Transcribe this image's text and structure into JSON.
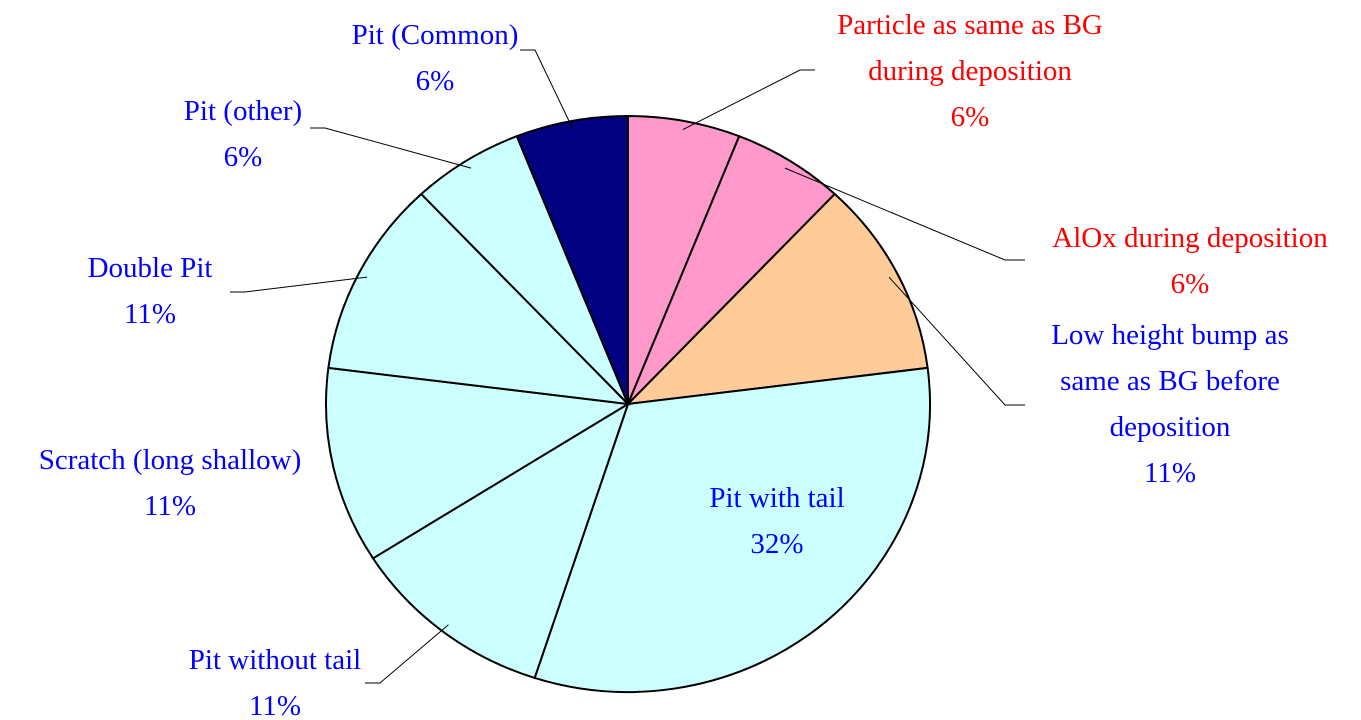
{
  "chart_data": {
    "type": "pie",
    "categories": [
      "Particle as same as BG during deposition",
      "AlOx during deposition",
      "Low height bump as same as BG before deposition",
      "Pit with tail",
      "Pit without tail",
      "Scratch (long shallow)",
      "Double Pit",
      "Pit (other)",
      "Pit (Common)"
    ],
    "values": [
      6,
      6,
      11,
      32,
      11,
      11,
      11,
      6,
      6
    ],
    "value_labels": [
      "6%",
      "6%",
      "11%",
      "32%",
      "11%",
      "11%",
      "11%",
      "6%",
      "6%"
    ],
    "colors": [
      "#ff99cc",
      "#ff99cc",
      "#ffcc99",
      "#ccffff",
      "#ccffff",
      "#ccffff",
      "#ccffff",
      "#ccffff",
      "#000080"
    ],
    "label_colors": [
      "#ff0000",
      "#ff0000",
      "#0000ff",
      "#0000ff",
      "#0000ff",
      "#0000ff",
      "#0000ff",
      "#0000ff",
      "#0000ff"
    ]
  }
}
